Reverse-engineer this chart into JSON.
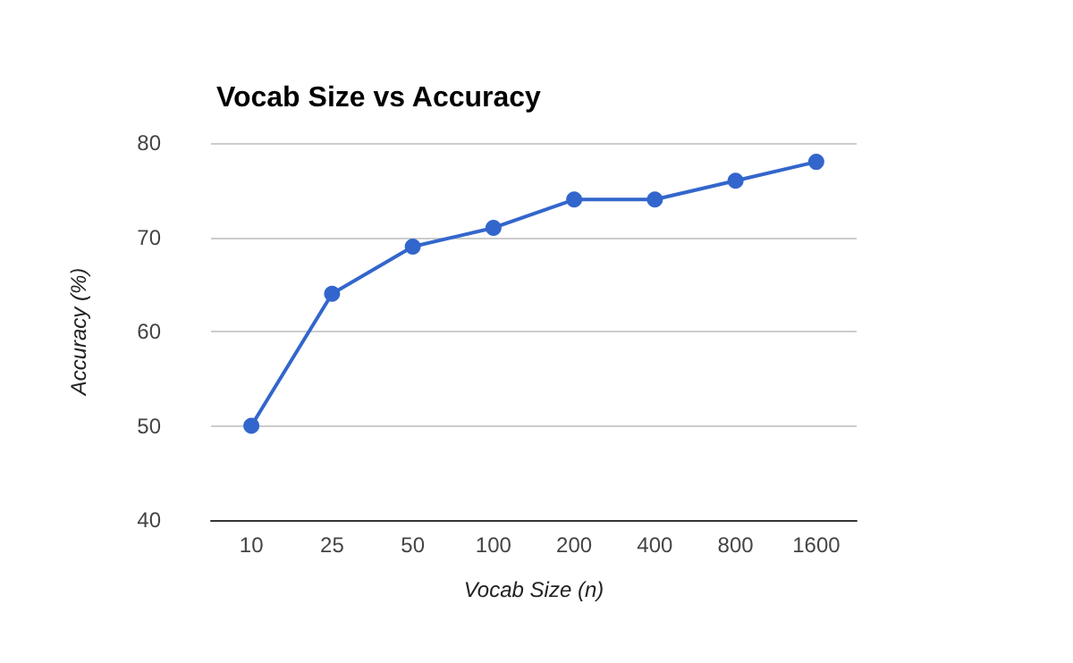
{
  "chart_data": {
    "type": "line",
    "title": "Vocab Size vs Accuracy",
    "xlabel": "Vocab Size (n)",
    "ylabel": "Accuracy (%)",
    "categories": [
      "10",
      "25",
      "50",
      "100",
      "200",
      "400",
      "800",
      "1600"
    ],
    "series": [
      {
        "color": "#3366cc",
        "values": [
          50,
          64,
          69,
          71,
          74,
          74,
          76,
          78
        ]
      }
    ],
    "ylim": [
      40,
      80
    ],
    "yticks": [
      40,
      50,
      60,
      70,
      80
    ],
    "grid": "y",
    "marker": "circle",
    "line_style": "solid"
  }
}
